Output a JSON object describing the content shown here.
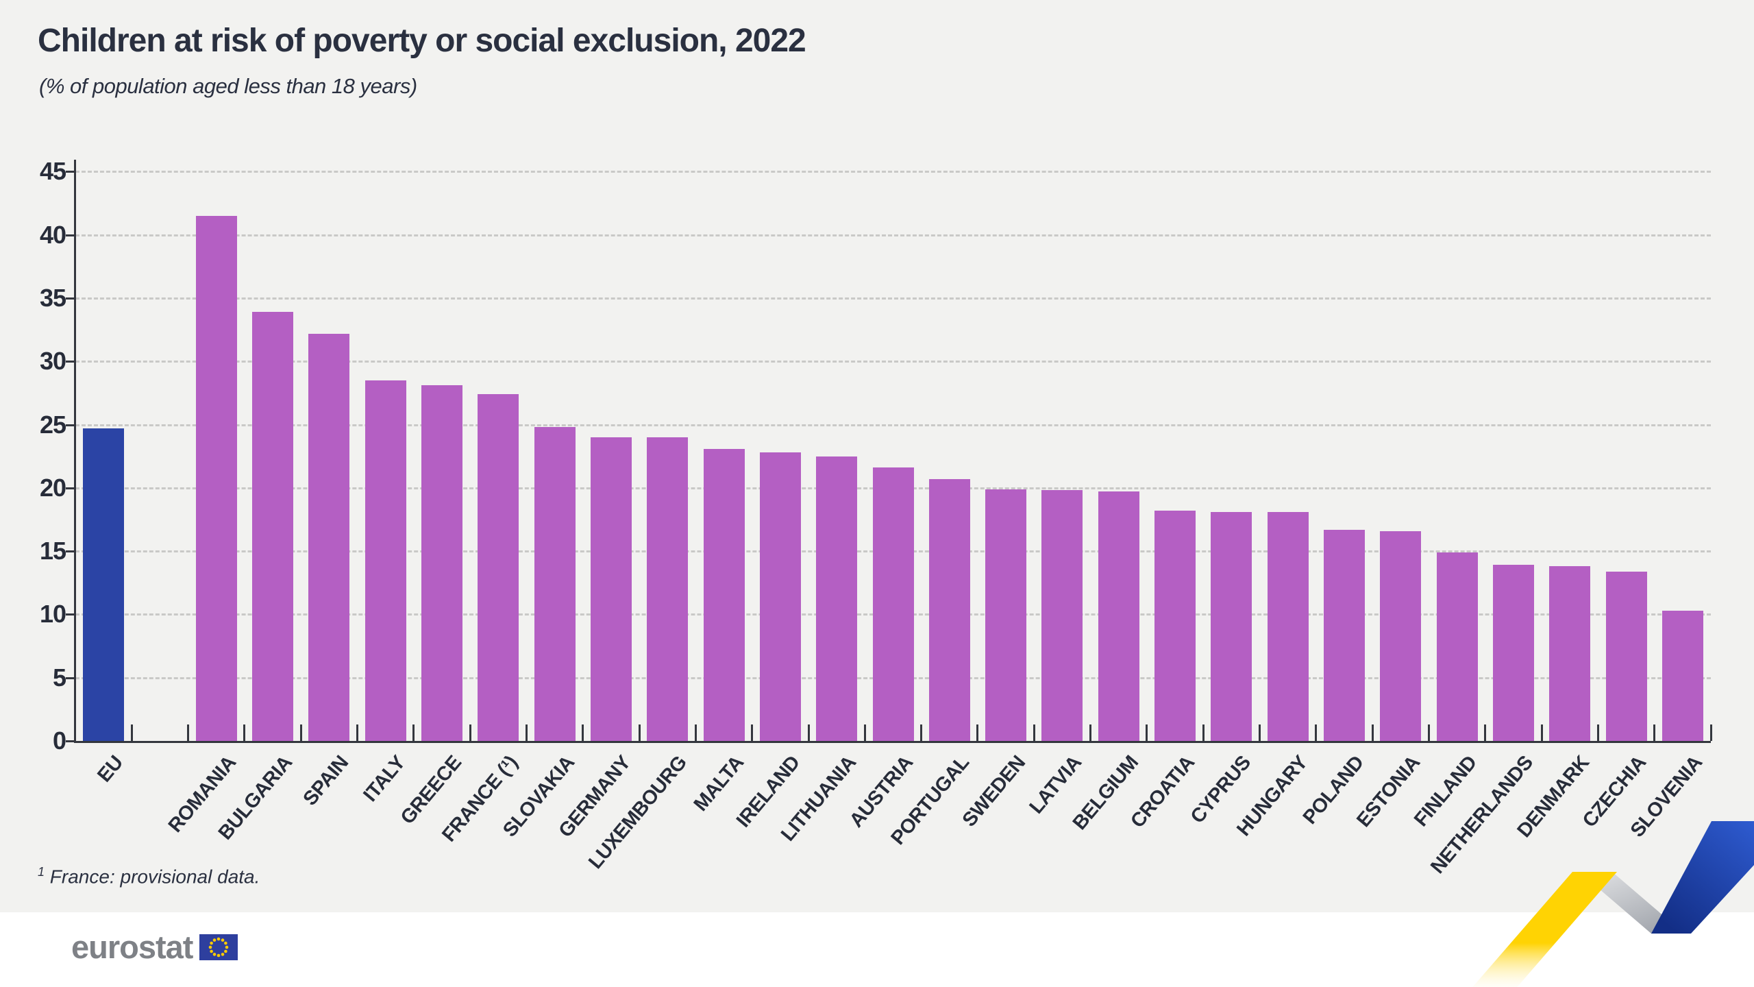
{
  "title": "Children at risk of poverty or social exclusion, 2022",
  "subtitle": "(% of population aged less than 18 years)",
  "footnote": {
    "marker": "1",
    "text": "France: provisional data."
  },
  "logo": {
    "text": "eurostat"
  },
  "colors": {
    "background": "#F2F2F0",
    "footer_background": "#FFFFFF",
    "eu_bar_blue": "#2B44A5",
    "member_bar_magenta": "#B45FC3",
    "grid_gray": "#C9C9C7",
    "axis_dark": "#34373E",
    "text_dark": "#272C39",
    "logo_gray": "#7E8186",
    "flag_blue": "#2E3F9E",
    "flag_star_yellow": "#FFCC00",
    "ribbon_yellow": "#FFD303",
    "ribbon_blue": "#2350BE",
    "ribbon_silver": "#C5C8CD"
  },
  "chart_data": {
    "type": "bar",
    "title": "Children at risk of poverty or social exclusion, 2022",
    "subtitle": "(% of population aged less than 18 years)",
    "ylabel": "% of population aged less than 18 years",
    "xlabel": "",
    "ylim": [
      0,
      45
    ],
    "yticks": [
      0,
      5,
      10,
      15,
      20,
      25,
      30,
      35,
      40,
      45
    ],
    "grid": "horizontal-dashed",
    "legend": "none",
    "highlight_category": "EU",
    "gap_after_first_bar": true,
    "categories": [
      "EU",
      "ROMANIA",
      "BULGARIA",
      "SPAIN",
      "ITALY",
      "GREECE",
      "FRANCE (¹)",
      "SLOVAKIA",
      "GERMANY",
      "LUXEMBOURG",
      "MALTA",
      "IRELAND",
      "LITHUANIA",
      "AUSTRIA",
      "PORTUGAL",
      "SWEDEN",
      "LATVIA",
      "BELGIUM",
      "CROATIA",
      "CYPRUS",
      "HUNGARY",
      "POLAND",
      "ESTONIA",
      "FINLAND",
      "NETHERLANDS",
      "DENMARK",
      "CZECHIA",
      "SLOVENIA"
    ],
    "values": [
      24.7,
      41.5,
      33.9,
      32.2,
      28.5,
      28.1,
      27.4,
      24.8,
      24.0,
      24.0,
      23.1,
      22.8,
      22.5,
      21.6,
      20.7,
      19.9,
      19.8,
      19.7,
      18.2,
      18.1,
      18.1,
      16.7,
      16.6,
      14.9,
      13.9,
      13.8,
      13.4,
      10.3
    ]
  }
}
